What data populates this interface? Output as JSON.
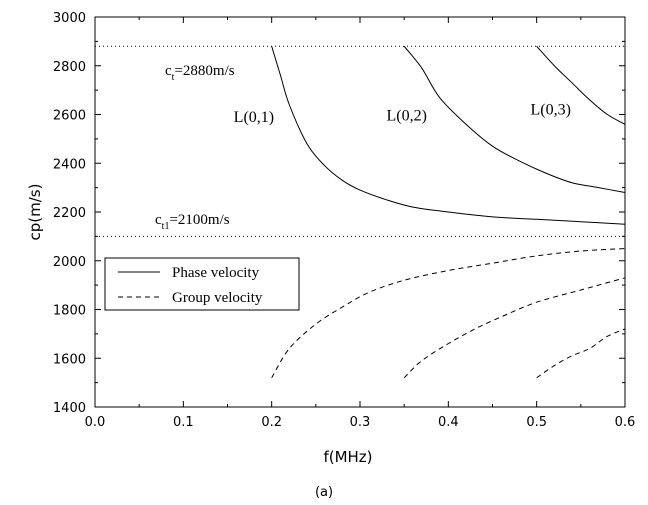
{
  "chart_data": {
    "type": "line",
    "xlabel": "f(MHz)",
    "ylabel": "cp(m/s)",
    "xlim": [
      0.0,
      0.6
    ],
    "ylim": [
      1400,
      3000
    ],
    "xticks": [
      "0.0",
      "0.1",
      "0.2",
      "0.3",
      "0.4",
      "0.5",
      "0.6"
    ],
    "yticks": [
      "1400",
      "1600",
      "1800",
      "2000",
      "2200",
      "2400",
      "2600",
      "2800",
      "3000"
    ],
    "caption": "(a)",
    "legend": {
      "position": "lower-left",
      "entries": [
        {
          "label": "Phase velocity",
          "style": "solid"
        },
        {
          "label": "Group velocity",
          "style": "dashed"
        }
      ]
    },
    "reference_lines": [
      {
        "name": "ct",
        "value": 2880,
        "label_main": "c",
        "label_sub": "t",
        "label_rest": "=2880m/s"
      },
      {
        "name": "ct1",
        "value": 2100,
        "label_main": "c",
        "label_sub": "t1",
        "label_rest": "=2100m/s"
      }
    ],
    "series": [
      {
        "name": "L(0,1) phase",
        "style": "solid",
        "x": [
          0.2,
          0.21,
          0.22,
          0.24,
          0.26,
          0.28,
          0.3,
          0.33,
          0.36,
          0.4,
          0.45,
          0.5,
          0.55,
          0.6
        ],
        "y": [
          2880,
          2760,
          2640,
          2480,
          2390,
          2330,
          2290,
          2250,
          2220,
          2200,
          2180,
          2170,
          2160,
          2150
        ]
      },
      {
        "name": "L(0,2) phase",
        "style": "solid",
        "x": [
          0.35,
          0.37,
          0.39,
          0.42,
          0.45,
          0.48,
          0.51,
          0.54,
          0.57,
          0.6
        ],
        "y": [
          2880,
          2790,
          2670,
          2560,
          2470,
          2410,
          2360,
          2320,
          2300,
          2280
        ]
      },
      {
        "name": "L(0,3) phase",
        "style": "solid",
        "x": [
          0.5,
          0.52,
          0.54,
          0.56,
          0.58,
          0.6
        ],
        "y": [
          2880,
          2800,
          2730,
          2660,
          2600,
          2560
        ]
      },
      {
        "name": "L(0,1) group",
        "style": "dashed",
        "x": [
          0.2,
          0.22,
          0.25,
          0.28,
          0.31,
          0.35,
          0.4,
          0.45,
          0.5,
          0.55,
          0.6
        ],
        "y": [
          1520,
          1640,
          1740,
          1810,
          1870,
          1920,
          1960,
          1990,
          2020,
          2040,
          2050
        ]
      },
      {
        "name": "L(0,2) group",
        "style": "dashed",
        "x": [
          0.35,
          0.37,
          0.4,
          0.43,
          0.46,
          0.5,
          0.55,
          0.6
        ],
        "y": [
          1520,
          1590,
          1660,
          1720,
          1770,
          1830,
          1880,
          1930
        ]
      },
      {
        "name": "L(0,3) group",
        "style": "dashed",
        "x": [
          0.5,
          0.52,
          0.54,
          0.56,
          0.58,
          0.6
        ],
        "y": [
          1520,
          1570,
          1610,
          1640,
          1690,
          1720
        ]
      }
    ],
    "annotations": [
      {
        "text": "L(0,1)",
        "x": 0.157,
        "y": 2570
      },
      {
        "text": "L(0,2)",
        "x": 0.33,
        "y": 2575
      },
      {
        "text": "L(0,3)",
        "x": 0.493,
        "y": 2600
      }
    ]
  }
}
